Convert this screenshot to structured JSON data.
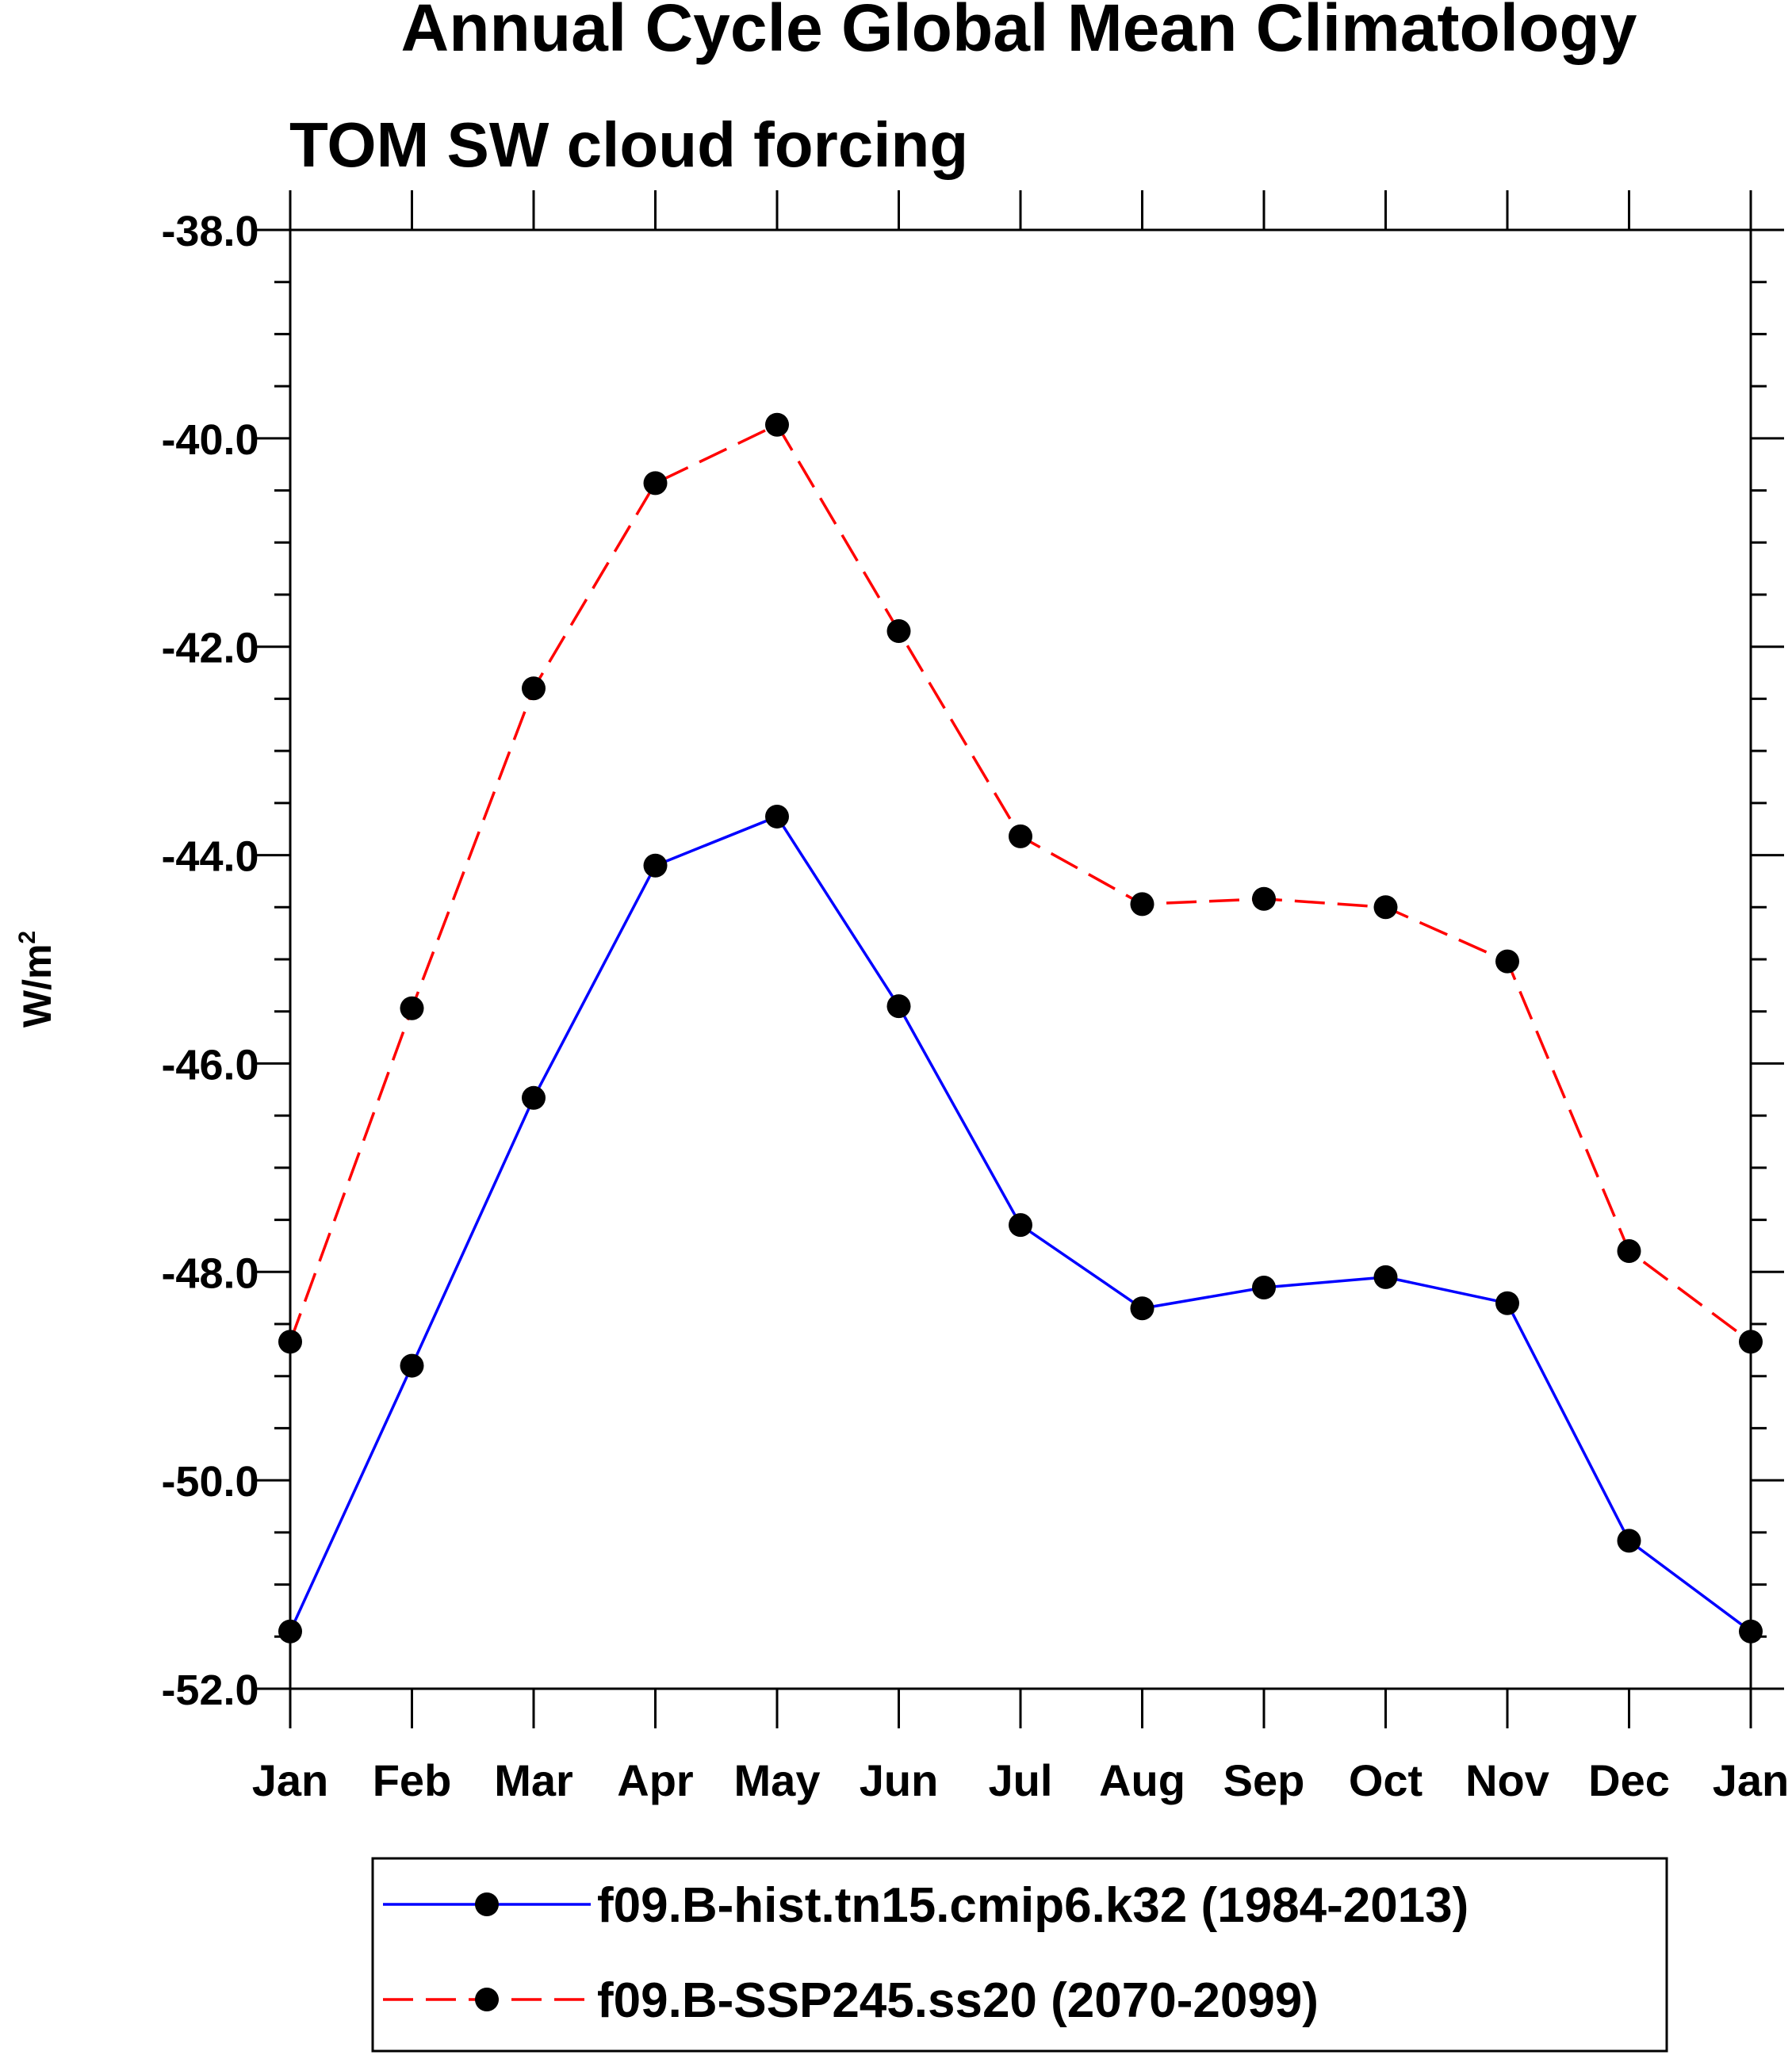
{
  "chart_data": {
    "type": "line",
    "title": "Annual Cycle Global Mean Climatology",
    "subtitle": "TOM SW cloud forcing",
    "ylabel": "W/m",
    "ylabel_superscript": "2",
    "xlabel": "",
    "categories": [
      "Jan",
      "Feb",
      "Mar",
      "Apr",
      "May",
      "Jun",
      "Jul",
      "Aug",
      "Sep",
      "Oct",
      "Nov",
      "Dec",
      "Jan"
    ],
    "ylim": [
      -52.0,
      -38.0
    ],
    "yticks": [
      "-38.0",
      "-40.0",
      "-42.0",
      "-44.0",
      "-46.0",
      "-48.0",
      "-50.0",
      "-52.0"
    ],
    "grid": false,
    "legend_position": "bottom",
    "series": [
      {
        "name": "f09.B-hist.tn15.cmip6.k32 (1984-2013)",
        "color": "#0000ff",
        "dash": "solid",
        "values": [
          -51.45,
          -48.9,
          -46.33,
          -44.1,
          -43.63,
          -45.45,
          -47.55,
          -48.35,
          -48.15,
          -48.05,
          -48.3,
          -50.58,
          -51.45
        ]
      },
      {
        "name": "f09.B-SSP245.ss20 (2070-2099)",
        "color": "#ff0000",
        "dash": "dashed",
        "values": [
          -48.67,
          -45.47,
          -42.4,
          -40.43,
          -39.87,
          -41.85,
          -43.82,
          -44.47,
          -44.42,
          -44.5,
          -45.02,
          -47.8,
          -48.67
        ]
      }
    ]
  }
}
